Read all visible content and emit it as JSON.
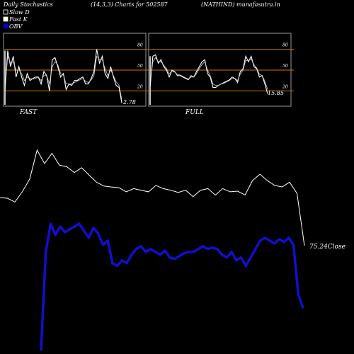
{
  "header": {
    "left": "Daily Stochastics",
    "center": "(14,3,3) Charts for 502587",
    "right": "(NATHIND) munafasutra.in"
  },
  "legend": [
    {
      "label": "Slow  D",
      "color": "#000000",
      "swatch_border": "#ffffff"
    },
    {
      "label": "Fast K",
      "color": "#ffffff",
      "swatch_border": "#ffffff"
    },
    {
      "label": "OBV",
      "color": "#0000cc",
      "swatch_border": "#0000cc"
    }
  ],
  "colors": {
    "background": "#000000",
    "panel_bg": "#000000",
    "panel_border": "#999999",
    "level_line": "#c87a00",
    "price_line": "#ffffff",
    "obv_line": "#1010cc",
    "text": "#ffffff"
  },
  "chart_data": [
    {
      "type": "line",
      "panel": "FAST",
      "label": "FAST",
      "ylim": [
        0,
        100
      ],
      "levels": [
        20,
        50,
        80
      ],
      "tick_labels": [
        "20",
        "50",
        "80"
      ],
      "last_value_label": "2.78",
      "series": [
        {
          "name": "Fast K",
          "values": [
            20,
            78,
            55,
            70,
            40,
            55,
            40,
            28,
            45,
            35,
            38,
            40,
            40,
            30,
            48,
            42,
            20,
            65,
            68,
            55,
            40,
            45,
            22,
            30,
            28,
            35,
            35,
            38,
            40,
            30,
            30,
            38,
            48,
            80,
            60,
            70,
            45,
            38,
            55,
            40,
            28,
            25,
            2.78
          ]
        },
        {
          "name": "Slow D",
          "values": [
            22,
            70,
            60,
            62,
            50,
            50,
            45,
            35,
            40,
            38,
            37,
            38,
            40,
            35,
            42,
            42,
            30,
            55,
            62,
            58,
            45,
            43,
            30,
            30,
            30,
            32,
            34,
            36,
            38,
            34,
            32,
            36,
            42,
            70,
            65,
            65,
            52,
            42,
            50,
            42,
            33,
            28,
            8
          ]
        }
      ]
    },
    {
      "type": "line",
      "panel": "FULL",
      "label": "FULL",
      "ylim": [
        0,
        100
      ],
      "levels": [
        20,
        50,
        80
      ],
      "tick_labels": [
        "20",
        "50",
        "80"
      ],
      "last_value_label": "15.85",
      "series": [
        {
          "name": "Full K",
          "values": [
            25,
            70,
            72,
            60,
            65,
            55,
            50,
            40,
            50,
            48,
            42,
            42,
            40,
            38,
            36,
            42,
            40,
            48,
            55,
            62,
            65,
            45,
            40,
            25,
            25,
            28,
            30,
            32,
            34,
            36,
            40,
            38,
            32,
            48,
            52,
            70,
            62,
            70,
            55,
            52,
            40,
            42,
            30,
            15.85
          ]
        },
        {
          "name": "Full D",
          "values": [
            30,
            62,
            68,
            62,
            62,
            57,
            52,
            45,
            48,
            47,
            44,
            43,
            41,
            39,
            37,
            40,
            40,
            45,
            52,
            58,
            62,
            50,
            42,
            30,
            28,
            28,
            30,
            31,
            33,
            35,
            38,
            38,
            35,
            44,
            50,
            64,
            64,
            66,
            58,
            53,
            44,
            42,
            34,
            22
          ]
        }
      ]
    },
    {
      "type": "line",
      "panel": "price",
      "last_value_label": "75.24Close",
      "series": [
        {
          "name": "Close",
          "values": [
            90.2,
            90.0,
            88.8,
            92.0,
            96.0,
            105.0,
            100.8,
            104.0,
            100.3,
            99.8,
            98.0,
            99.5,
            97.2,
            95.0,
            93.8,
            93.5,
            93.3,
            92.0,
            93.0,
            92.5,
            92.0,
            94.0,
            93.0,
            92.5,
            91.8,
            92.5,
            90.5,
            92.5,
            93.0,
            91.0,
            93.0,
            92.0,
            92.2,
            91.0,
            95.5,
            97.5,
            95.5,
            94.0,
            93.5,
            95.0,
            91.5,
            75.24
          ]
        }
      ]
    },
    {
      "type": "line",
      "panel": "obv",
      "series": [
        {
          "name": "OBV",
          "values": [
            -50,
            20,
            40,
            32,
            38,
            34,
            36,
            38,
            40,
            35,
            30,
            37,
            33,
            25,
            28,
            12,
            10,
            14,
            12,
            18,
            22,
            24,
            20,
            22,
            20,
            18,
            21,
            16,
            15,
            17,
            19,
            20,
            20,
            22,
            24,
            22,
            23,
            22,
            18,
            16,
            20,
            14,
            16,
            10,
            16,
            22,
            28,
            30,
            28,
            26,
            29,
            27,
            30,
            25,
            -10,
            -20
          ]
        }
      ]
    }
  ],
  "panel_labels": {
    "fast": "FAST",
    "full": "FULL"
  }
}
